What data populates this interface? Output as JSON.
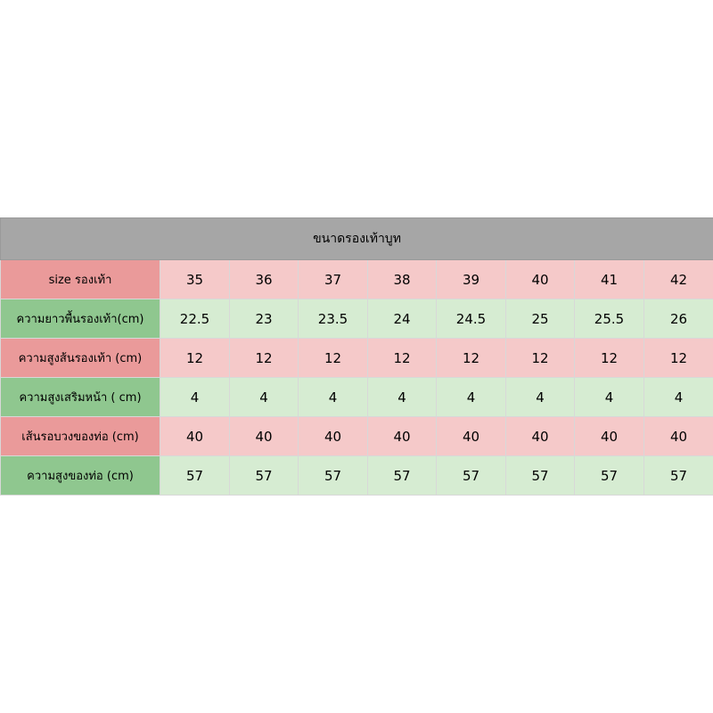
{
  "title": "ขนาดรองเท้าบูท",
  "colors": {
    "title_bg": "#a6a6a6",
    "label_red": "#ea9a9a",
    "cell_red": "#f5c9c9",
    "label_green": "#8fc78f",
    "cell_green": "#d6ecd2"
  },
  "rows": [
    {
      "label": "size รองเท้า",
      "values": [
        "35",
        "36",
        "37",
        "38",
        "39",
        "40",
        "41",
        "42"
      ],
      "tone": "red"
    },
    {
      "label": "ความยาวพื้นรองเท้า(cm)",
      "values": [
        "22.5",
        "23",
        "23.5",
        "24",
        "24.5",
        "25",
        "25.5",
        "26"
      ],
      "tone": "green"
    },
    {
      "label": "ความสูงส้นรองเท้า (cm)",
      "values": [
        "12",
        "12",
        "12",
        "12",
        "12",
        "12",
        "12",
        "12"
      ],
      "tone": "red"
    },
    {
      "label": "ความสูงเสริมหน้า ( cm)",
      "values": [
        "4",
        "4",
        "4",
        "4",
        "4",
        "4",
        "4",
        "4"
      ],
      "tone": "green"
    },
    {
      "label": "เส้นรอบวงของท่อ (cm)",
      "values": [
        "40",
        "40",
        "40",
        "40",
        "40",
        "40",
        "40",
        "40"
      ],
      "tone": "red"
    },
    {
      "label": "ความสูงของท่อ (cm)",
      "values": [
        "57",
        "57",
        "57",
        "57",
        "57",
        "57",
        "57",
        "57"
      ],
      "tone": "green"
    }
  ]
}
